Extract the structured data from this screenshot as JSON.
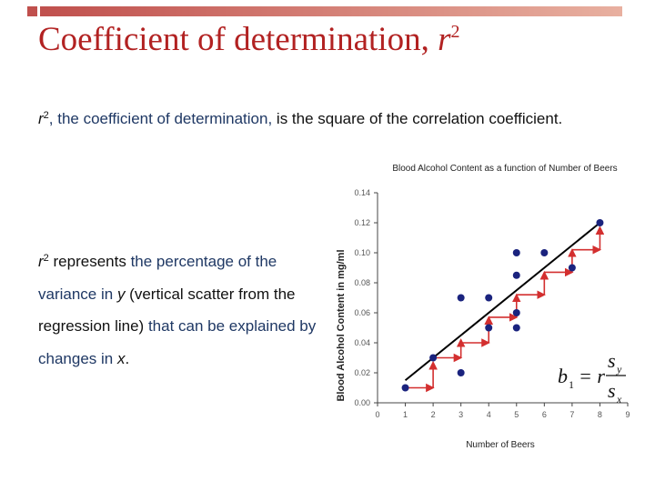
{
  "title": {
    "text": "Coefficient of determination, ",
    "var": "r",
    "sup": "2"
  },
  "para1": {
    "var": "r",
    "sup": "2",
    "hl1": ", the coefficient of determination,",
    "rest": " is the square of the correlation coefficient."
  },
  "para2": {
    "var": "r",
    "sup": "2",
    "t1": " represents ",
    "hl1": "the percentage of the variance in ",
    "y": "y",
    "t2": " (vertical scatter from the regression line) ",
    "hl2": "that can be explained by changes in ",
    "x": "x",
    "t3": "."
  },
  "formula": {
    "lhs": "b",
    "lhs_sub": "1",
    "eq": "= r",
    "num": "s",
    "num_sub": "y",
    "den": "s",
    "den_sub": "x"
  },
  "chart_data": {
    "type": "scatter",
    "title": "Blood Alcohol Content as a function of Number of Beers",
    "xlabel": "Number of Beers",
    "ylabel": "Blood Alcohol Content in mg/ml",
    "xlim": [
      0,
      9
    ],
    "ylim": [
      0,
      0.14
    ],
    "x_ticks": [
      "0",
      "1",
      "2",
      "3",
      "4",
      "5",
      "6",
      "7",
      "8",
      "9"
    ],
    "y_ticks": [
      "0.00",
      "0.02",
      "0.04",
      "0.06",
      "0.08",
      "0.10",
      "0.12",
      "0.14"
    ],
    "points": [
      {
        "x": 1,
        "y": 0.01
      },
      {
        "x": 2,
        "y": 0.03
      },
      {
        "x": 3,
        "y": 0.02
      },
      {
        "x": 3,
        "y": 0.07
      },
      {
        "x": 4,
        "y": 0.05
      },
      {
        "x": 4,
        "y": 0.07
      },
      {
        "x": 5,
        "y": 0.05
      },
      {
        "x": 5,
        "y": 0.06
      },
      {
        "x": 5,
        "y": 0.085
      },
      {
        "x": 5,
        "y": 0.1
      },
      {
        "x": 6,
        "y": 0.1
      },
      {
        "x": 7,
        "y": 0.09
      },
      {
        "x": 8,
        "y": 0.12
      }
    ],
    "regression_line": {
      "x": [
        1,
        8
      ],
      "y": [
        0.015,
        0.12
      ]
    },
    "step_arrows": [
      {
        "x0": 1,
        "y0": 0.01,
        "x1": 2,
        "y1": 0.01,
        "x2": 2,
        "y2": 0.027
      },
      {
        "x0": 2,
        "y0": 0.03,
        "x1": 3,
        "y1": 0.03,
        "x2": 3,
        "y2": 0.042
      },
      {
        "x0": 3,
        "y0": 0.04,
        "x1": 4,
        "y1": 0.04,
        "x2": 4,
        "y2": 0.057
      },
      {
        "x0": 4,
        "y0": 0.057,
        "x1": 5,
        "y1": 0.057,
        "x2": 5,
        "y2": 0.072
      },
      {
        "x0": 5,
        "y0": 0.072,
        "x1": 6,
        "y1": 0.072,
        "x2": 6,
        "y2": 0.087
      },
      {
        "x0": 6,
        "y0": 0.087,
        "x1": 7,
        "y1": 0.087,
        "x2": 7,
        "y2": 0.102
      },
      {
        "x0": 7,
        "y0": 0.102,
        "x1": 8,
        "y1": 0.102,
        "x2": 8,
        "y2": 0.117
      }
    ],
    "colors": {
      "points": "#1a237e",
      "line": "#000000",
      "arrows": "#d32f2f",
      "axis": "#444444"
    },
    "grid": false
  }
}
